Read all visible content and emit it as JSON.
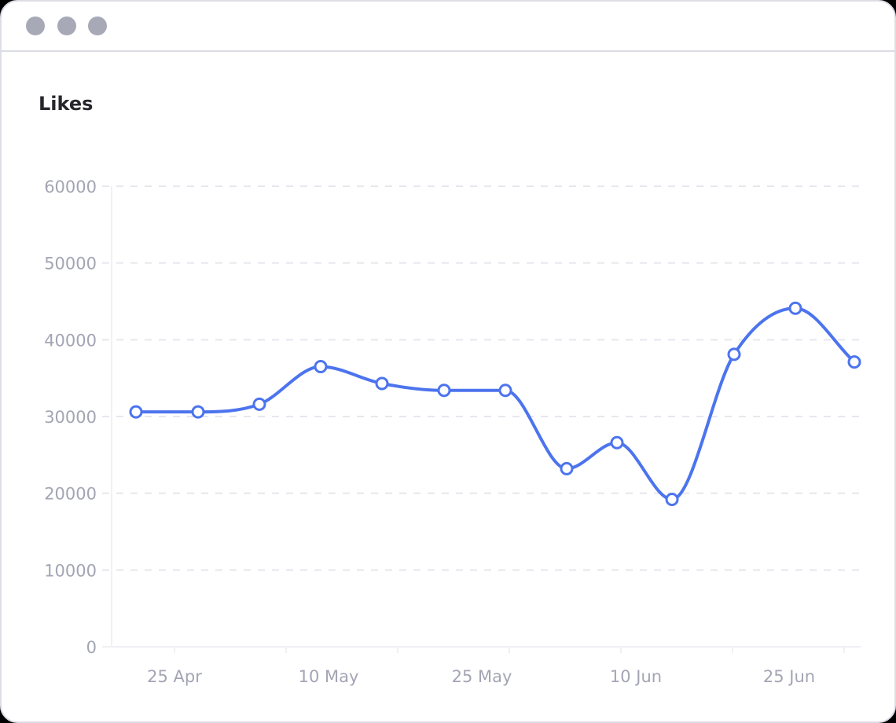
{
  "window": {
    "controls": [
      "dot-1",
      "dot-2",
      "dot-3"
    ]
  },
  "header": {
    "title": "Likes"
  },
  "chart_data": {
    "type": "line",
    "title": "Likes",
    "xlabel": "",
    "ylabel": "",
    "ylim": [
      0,
      60000
    ],
    "yticks": [
      "0",
      "10000",
      "20000",
      "30000",
      "40000",
      "50000",
      "60000"
    ],
    "xtick_labels": [
      "25 Apr",
      "10 May",
      "25 May",
      "10 Jun",
      "25 Jun"
    ],
    "grid": "horizontal dashed",
    "legend": null,
    "series": [
      {
        "name": "Likes",
        "color": "#4c74ee",
        "smooth": true,
        "values": [
          30600,
          30600,
          31600,
          36500,
          34300,
          33400,
          33400,
          23200,
          26600,
          19200,
          38100,
          44100,
          37100
        ]
      }
    ]
  },
  "colors": {
    "line": "#4c74ee",
    "grid": "#e6e7ee",
    "axis_text": "#a3a5b4",
    "title": "#26262c",
    "window_border": "#dcdde5",
    "window_dots": "#a8a9b7"
  }
}
